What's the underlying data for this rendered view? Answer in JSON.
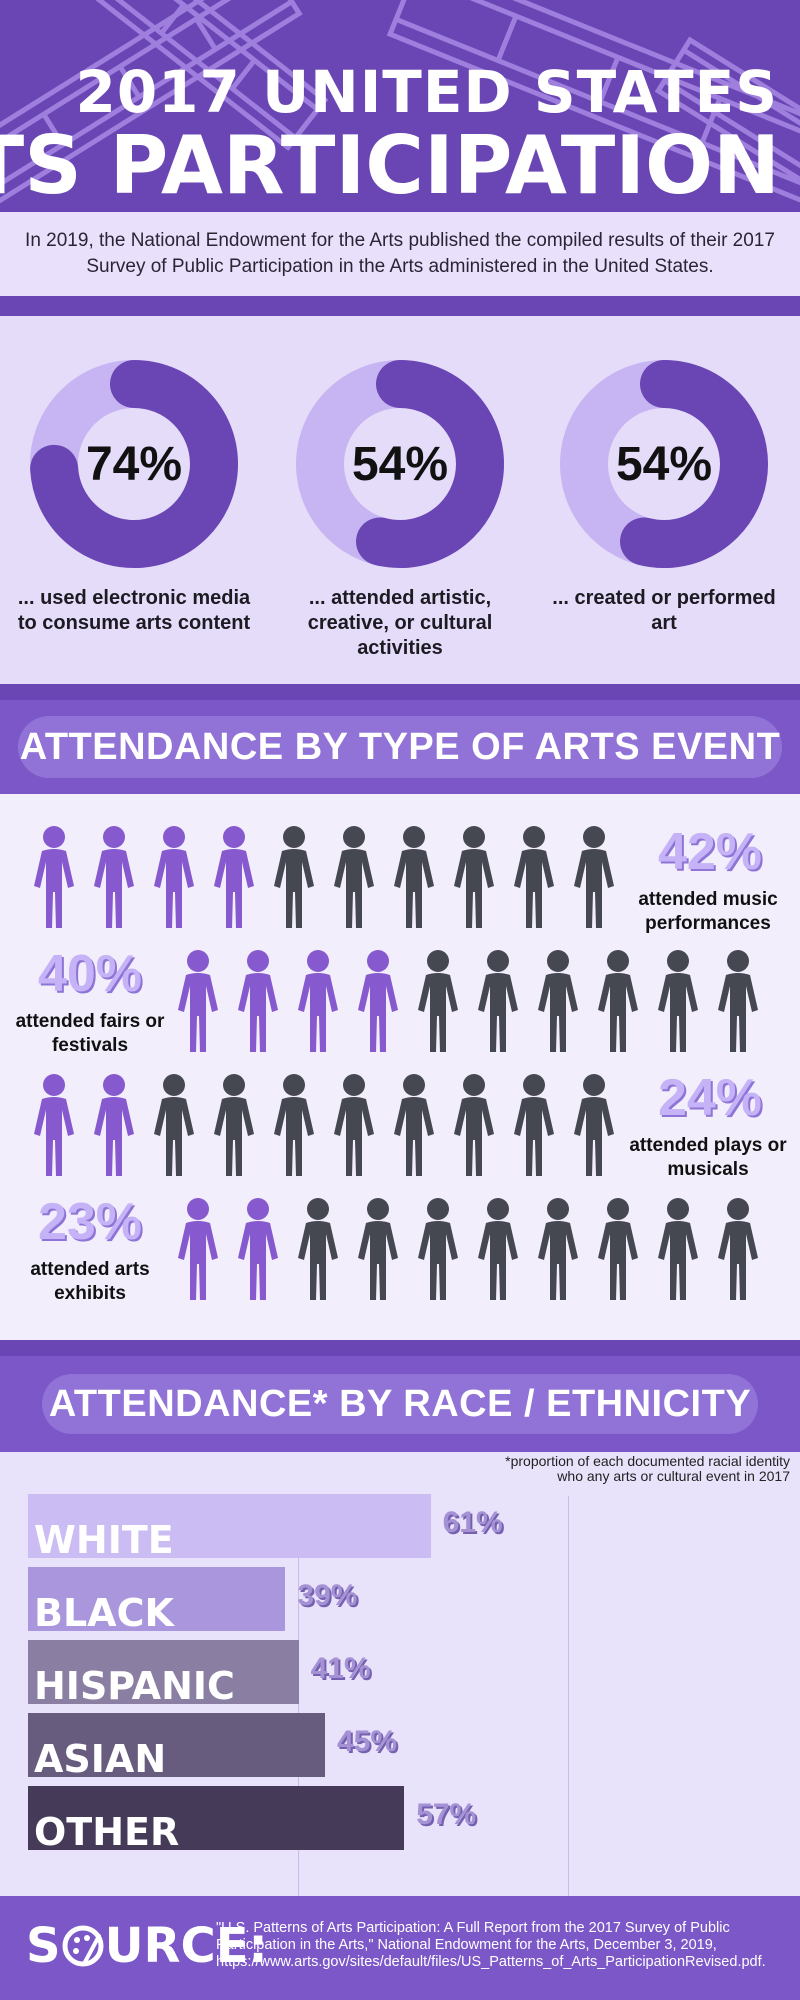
{
  "header": {
    "title_line1": "2017 UNITED STATES",
    "title_line2": "ARTS PARTICIPATION"
  },
  "intro": "In 2019, the National Endowment for the Arts published the compiled results of their 2017 Survey of Public Participation in the Arts administered in the United States.",
  "donuts": [
    {
      "value": 74,
      "label": "74%",
      "caption": "... used electronic media to consume arts content"
    },
    {
      "value": 54,
      "label": "54%",
      "caption": "... attended artistic, creative, or cultural activities"
    },
    {
      "value": 54,
      "label": "54%",
      "caption": "... created or performed art"
    }
  ],
  "attendance_type": {
    "heading": "ATTENDANCE BY TYPE OF ARTS EVENT",
    "rows": [
      {
        "pct": "42%",
        "label": "attended music performances",
        "highlighted": 4,
        "side": "right"
      },
      {
        "pct": "40%",
        "label": "attended fairs or festivals",
        "highlighted": 4,
        "side": "left"
      },
      {
        "pct": "24%",
        "label": "attended plays or musicals",
        "highlighted": 2,
        "side": "right"
      },
      {
        "pct": "23%",
        "label": "attended arts exhibits",
        "highlighted": 2,
        "side": "left"
      }
    ]
  },
  "attendance_race": {
    "heading": "ATTENDANCE* BY RACE / ETHNICITY",
    "note": "*proportion of each documented racial identity who any arts or cultural event in 2017"
  },
  "chart_data": {
    "type": "bar",
    "orientation": "horizontal",
    "categories": [
      "WHITE",
      "BLACK",
      "HISPANIC",
      "ASIAN",
      "OTHER"
    ],
    "values": [
      61,
      39,
      41,
      45,
      57
    ],
    "value_labels": [
      "61%",
      "39%",
      "41%",
      "45%",
      "57%"
    ],
    "colors": [
      "#cbbcf3",
      "#a996dc",
      "#8b7ea3",
      "#675b7e",
      "#453a58"
    ],
    "xlim": [
      0,
      100
    ]
  },
  "source": {
    "word": "SOURCE:",
    "citation": "\"U.S. Patterns of Arts Participation: A Full Report from the 2017 Survey of Public Participation in the Arts,\" National Endowment for the Arts, December 3, 2019, https://www.arts.gov/sites/default/files/US_Patterns_of_Arts_ParticipationRevised.pdf."
  },
  "colors": {
    "purple": "#6a46b4",
    "purple_mid": "#7c57c8",
    "accent_light": "#c6b3f7",
    "person_highlight": "#8659cf",
    "person_gray": "#454851"
  }
}
